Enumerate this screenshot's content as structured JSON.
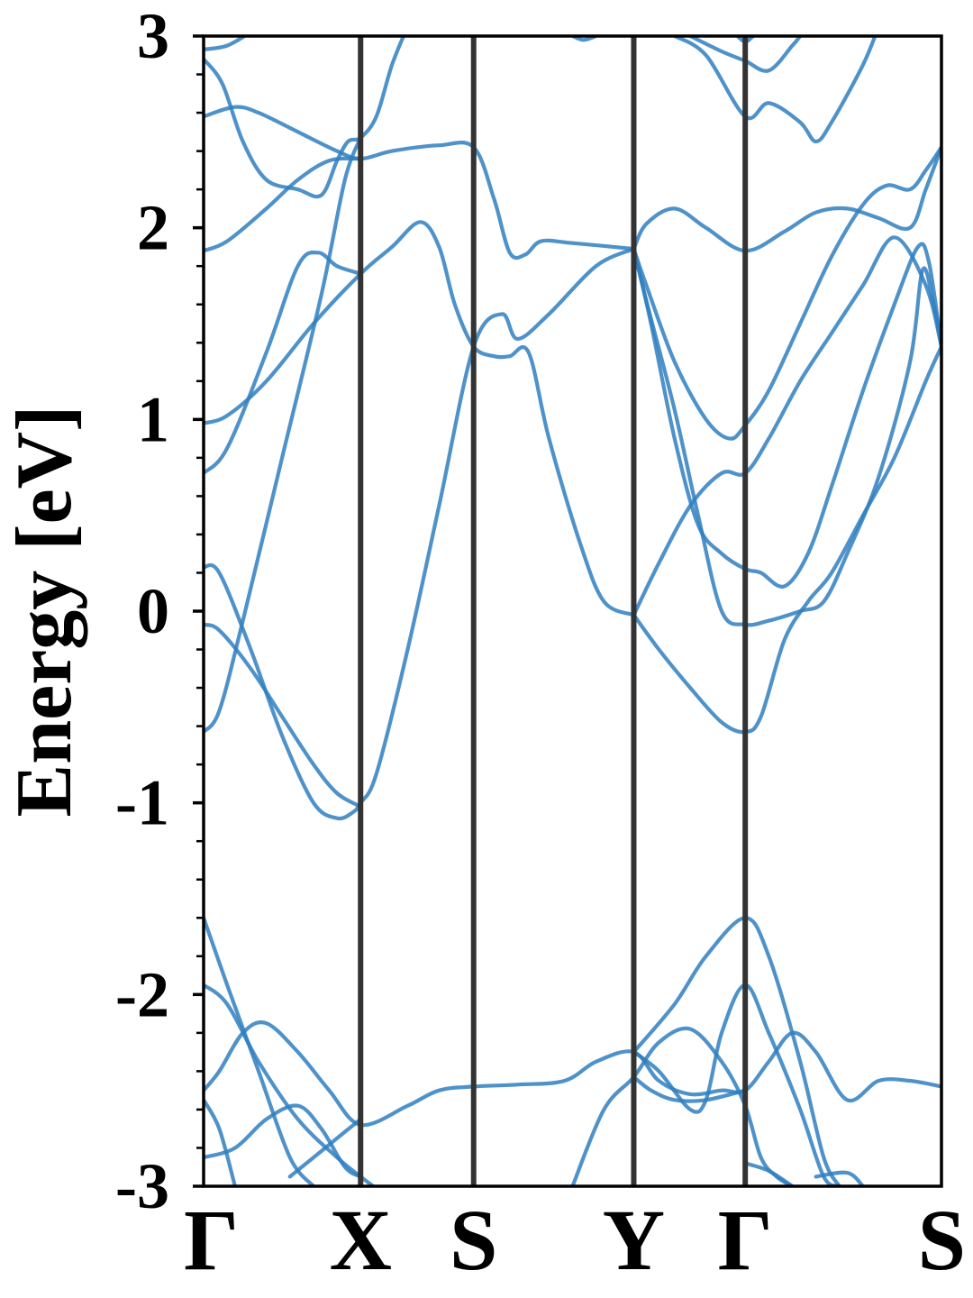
{
  "chart_data": {
    "type": "line",
    "title": "",
    "xlabel": "",
    "ylabel": "Energy [eV]",
    "ylim": [
      -3,
      3
    ],
    "yticks": [
      "3",
      "2",
      "1",
      "0",
      "-1",
      "-2",
      "-3"
    ],
    "y_minor_step": 0.2,
    "kpoints": [
      "Γ",
      "X",
      "S",
      "Y",
      "Γ",
      "S"
    ],
    "kpoint_positions": [
      0,
      1,
      1.72,
      2.74,
      3.45,
      4.7
    ],
    "grid": false,
    "line_color": "#2f7fbf",
    "kline_color": "#333333",
    "series": [
      {
        "values": [
          [
            0,
            2.93
          ],
          [
            0.15,
            2.95
          ],
          [
            0.3,
            3.02
          ]
        ]
      },
      {
        "values": [
          [
            0,
            2.88
          ],
          [
            0.12,
            2.75
          ],
          [
            0.25,
            2.45
          ],
          [
            0.4,
            2.25
          ],
          [
            0.6,
            2.2
          ],
          [
            0.75,
            2.17
          ],
          [
            0.85,
            2.35
          ],
          [
            0.92,
            2.45
          ],
          [
            1,
            2.47
          ],
          [
            1.1,
            2.58
          ],
          [
            1.2,
            2.85
          ],
          [
            1.3,
            3.05
          ]
        ]
      },
      {
        "values": [
          [
            0,
            2.58
          ],
          [
            0.2,
            2.63
          ],
          [
            0.35,
            2.6
          ],
          [
            0.6,
            2.5
          ],
          [
            0.85,
            2.4
          ],
          [
            1,
            2.36
          ],
          [
            1.2,
            2.4
          ],
          [
            1.5,
            2.43
          ],
          [
            1.72,
            2.42
          ],
          [
            1.85,
            2.15
          ],
          [
            1.95,
            1.87
          ],
          [
            2.05,
            1.86
          ],
          [
            2.15,
            1.93
          ],
          [
            2.35,
            1.92
          ],
          [
            2.74,
            1.89
          ]
        ]
      },
      {
        "values": [
          [
            0,
            1.88
          ],
          [
            0.15,
            1.93
          ],
          [
            0.4,
            2.1
          ],
          [
            0.6,
            2.25
          ],
          [
            0.8,
            2.35
          ],
          [
            1,
            2.36
          ]
        ]
      },
      {
        "values": [
          [
            0,
            0.98
          ],
          [
            0.15,
            1.02
          ],
          [
            0.4,
            1.2
          ],
          [
            0.7,
            1.5
          ],
          [
            1,
            1.76
          ],
          [
            1.2,
            1.9
          ],
          [
            1.38,
            2.03
          ],
          [
            1.5,
            1.9
          ],
          [
            1.6,
            1.6
          ],
          [
            1.72,
            1.38
          ],
          [
            1.85,
            1.33
          ],
          [
            1.95,
            1.33
          ],
          [
            2.07,
            1.35
          ],
          [
            2.2,
            0.9
          ],
          [
            2.4,
            0.35
          ],
          [
            2.55,
            0.05
          ],
          [
            2.74,
            -0.02
          ]
        ]
      },
      {
        "values": [
          [
            0,
            0.72
          ],
          [
            0.15,
            0.85
          ],
          [
            0.4,
            1.35
          ],
          [
            0.6,
            1.8
          ],
          [
            0.73,
            1.87
          ],
          [
            0.85,
            1.8
          ],
          [
            1,
            1.76
          ]
        ]
      },
      {
        "values": [
          [
            0,
            0.23
          ],
          [
            0.1,
            0.2
          ],
          [
            0.3,
            -0.2
          ],
          [
            0.5,
            -0.65
          ],
          [
            0.7,
            -1
          ],
          [
            0.85,
            -1.08
          ],
          [
            0.95,
            -1.05
          ],
          [
            1,
            -1.0
          ],
          [
            1.1,
            -0.85
          ],
          [
            1.3,
            -0.2
          ],
          [
            1.5,
            0.55
          ],
          [
            1.72,
            1.38
          ],
          [
            1.9,
            1.55
          ],
          [
            2,
            1.42
          ],
          [
            2.2,
            1.55
          ],
          [
            2.5,
            1.8
          ],
          [
            2.74,
            1.89
          ]
        ]
      },
      {
        "values": [
          [
            0,
            -0.07
          ],
          [
            0.1,
            -0.1
          ],
          [
            0.3,
            -0.3
          ],
          [
            0.5,
            -0.55
          ],
          [
            0.7,
            -0.8
          ],
          [
            0.85,
            -0.95
          ],
          [
            1,
            -1.02
          ]
        ]
      },
      {
        "values": [
          [
            0,
            -0.63
          ],
          [
            0.1,
            -0.52
          ],
          [
            0.25,
            -0.05
          ],
          [
            0.5,
            0.8
          ],
          [
            0.75,
            1.65
          ],
          [
            0.9,
            2.25
          ],
          [
            1,
            2.47
          ]
        ]
      },
      {
        "values": [
          [
            2.74,
            1.89
          ],
          [
            2.82,
            2.02
          ],
          [
            3.0,
            2.1
          ],
          [
            3.2,
            2.0
          ],
          [
            3.45,
            1.88
          ],
          [
            3.7,
            1.98
          ],
          [
            3.9,
            2.08
          ],
          [
            4.1,
            2.1
          ],
          [
            4.3,
            2.05
          ],
          [
            4.5,
            2.0
          ],
          [
            4.6,
            2.2
          ],
          [
            4.7,
            2.42
          ]
        ]
      },
      {
        "values": [
          [
            2.74,
            1.89
          ],
          [
            2.82,
            1.7
          ],
          [
            3.0,
            1.3
          ],
          [
            3.2,
            1.0
          ],
          [
            3.35,
            0.9
          ],
          [
            3.45,
            0.97
          ],
          [
            3.6,
            1.15
          ],
          [
            3.8,
            1.5
          ],
          [
            4,
            1.85
          ],
          [
            4.2,
            2.12
          ],
          [
            4.35,
            2.22
          ],
          [
            4.5,
            2.2
          ],
          [
            4.6,
            2.3
          ],
          [
            4.7,
            2.42
          ]
        ]
      },
      {
        "values": [
          [
            2.74,
            1.89
          ],
          [
            2.85,
            1.5
          ],
          [
            3.0,
            0.9
          ],
          [
            3.15,
            0.45
          ],
          [
            3.3,
            0.3
          ],
          [
            3.45,
            0.22
          ],
          [
            3.55,
            0.2
          ],
          [
            3.7,
            0.13
          ],
          [
            3.85,
            0.3
          ],
          [
            4,
            0.65
          ],
          [
            4.2,
            1.15
          ],
          [
            4.4,
            1.6
          ],
          [
            4.55,
            1.9
          ],
          [
            4.62,
            1.82
          ],
          [
            4.7,
            1.38
          ]
        ]
      },
      {
        "values": [
          [
            2.74,
            1.89
          ],
          [
            2.82,
            1.62
          ],
          [
            3.0,
            1.05
          ],
          [
            3.15,
            0.5
          ],
          [
            3.3,
            0.0
          ],
          [
            3.45,
            -0.07
          ],
          [
            3.6,
            -0.05
          ],
          [
            3.8,
            0.0
          ],
          [
            3.95,
            0.05
          ],
          [
            4.1,
            0.3
          ],
          [
            4.3,
            0.7
          ],
          [
            4.5,
            1.3
          ],
          [
            4.58,
            1.78
          ],
          [
            4.65,
            1.6
          ],
          [
            4.7,
            1.38
          ]
        ]
      },
      {
        "values": [
          [
            2.74,
            -0.02
          ],
          [
            2.9,
            0.25
          ],
          [
            3.1,
            0.55
          ],
          [
            3.3,
            0.72
          ],
          [
            3.45,
            0.72
          ],
          [
            3.6,
            0.9
          ],
          [
            3.8,
            1.2
          ],
          [
            4,
            1.45
          ],
          [
            4.2,
            1.7
          ],
          [
            4.4,
            1.95
          ],
          [
            4.6,
            1.7
          ],
          [
            4.7,
            1.38
          ]
        ]
      },
      {
        "values": [
          [
            2.74,
            -0.02
          ],
          [
            2.9,
            -0.2
          ],
          [
            3.1,
            -0.4
          ],
          [
            3.3,
            -0.58
          ],
          [
            3.45,
            -0.63
          ],
          [
            3.55,
            -0.55
          ],
          [
            3.7,
            -0.15
          ],
          [
            3.85,
            0.05
          ],
          [
            4,
            0.2
          ],
          [
            4.2,
            0.5
          ],
          [
            4.4,
            0.8
          ],
          [
            4.6,
            1.2
          ],
          [
            4.7,
            1.38
          ]
        ]
      },
      {
        "values": [
          [
            3.0,
            3.0
          ],
          [
            3.2,
            2.9
          ],
          [
            3.45,
            2.58
          ],
          [
            3.6,
            2.65
          ],
          [
            3.8,
            2.55
          ],
          [
            3.9,
            2.45
          ],
          [
            4.0,
            2.55
          ],
          [
            4.2,
            2.85
          ],
          [
            4.3,
            3.05
          ]
        ]
      },
      {
        "values": [
          [
            3.1,
            3.0
          ],
          [
            3.3,
            2.92
          ],
          [
            3.45,
            2.87
          ],
          [
            3.6,
            2.82
          ],
          [
            3.75,
            2.95
          ],
          [
            3.8,
            3.0
          ]
        ]
      },
      {
        "values": [
          [
            3.4,
            3.0
          ],
          [
            3.45,
            2.97
          ],
          [
            3.5,
            3.0
          ]
        ]
      },
      {
        "values": [
          [
            2.35,
            3.0
          ],
          [
            2.42,
            2.98
          ],
          [
            2.5,
            3.0
          ]
        ]
      },
      {
        "values": [
          [
            0,
            -1.6
          ],
          [
            0.15,
            -1.95
          ],
          [
            0.35,
            -2.4
          ],
          [
            0.55,
            -2.85
          ],
          [
            0.7,
            -3.0
          ]
        ]
      },
      {
        "values": [
          [
            0,
            -1.95
          ],
          [
            0.15,
            -2.05
          ],
          [
            0.35,
            -2.35
          ],
          [
            0.6,
            -2.65
          ],
          [
            0.85,
            -2.85
          ],
          [
            1,
            -2.95
          ],
          [
            1.08,
            -3.0
          ]
        ]
      },
      {
        "values": [
          [
            0,
            -2.5
          ],
          [
            0.1,
            -2.4
          ],
          [
            0.25,
            -2.2
          ],
          [
            0.4,
            -2.15
          ],
          [
            0.6,
            -2.3
          ],
          [
            0.8,
            -2.5
          ],
          [
            1,
            -2.68
          ],
          [
            1.3,
            -2.58
          ],
          [
            1.5,
            -2.5
          ],
          [
            1.72,
            -2.48
          ],
          [
            2.0,
            -2.47
          ],
          [
            2.3,
            -2.45
          ],
          [
            2.5,
            -2.35
          ],
          [
            2.74,
            -2.3
          ],
          [
            2.9,
            -2.45
          ],
          [
            3.1,
            -2.52
          ],
          [
            3.3,
            -2.5
          ],
          [
            3.45,
            -2.5
          ],
          [
            3.6,
            -2.35
          ],
          [
            3.75,
            -2.2
          ],
          [
            3.9,
            -2.3
          ],
          [
            4.1,
            -2.55
          ],
          [
            4.3,
            -2.45
          ],
          [
            4.5,
            -2.45
          ],
          [
            4.7,
            -2.48
          ]
        ]
      },
      {
        "values": [
          [
            0,
            -2.55
          ],
          [
            0.1,
            -2.7
          ],
          [
            0.2,
            -3.0
          ]
        ]
      },
      {
        "values": [
          [
            0,
            -2.85
          ],
          [
            0.2,
            -2.8
          ],
          [
            0.4,
            -2.65
          ],
          [
            0.6,
            -2.58
          ],
          [
            0.75,
            -2.7
          ],
          [
            0.9,
            -2.9
          ],
          [
            1,
            -2.95
          ]
        ]
      },
      {
        "values": [
          [
            0.55,
            -2.95
          ],
          [
            0.7,
            -2.85
          ],
          [
            0.85,
            -2.75
          ],
          [
            1,
            -2.65
          ]
        ]
      },
      {
        "values": [
          [
            2.35,
            -3.0
          ],
          [
            2.55,
            -2.6
          ],
          [
            2.74,
            -2.43
          ],
          [
            2.9,
            -2.25
          ],
          [
            3.1,
            -2.18
          ],
          [
            3.3,
            -2.35
          ],
          [
            3.45,
            -2.58
          ],
          [
            3.55,
            -2.85
          ],
          [
            3.65,
            -2.95
          ],
          [
            3.75,
            -3.0
          ]
        ]
      },
      {
        "values": [
          [
            2.74,
            -2.43
          ],
          [
            2.85,
            -2.5
          ],
          [
            3.0,
            -2.55
          ],
          [
            3.2,
            -2.55
          ],
          [
            3.45,
            -2.5
          ]
        ]
      },
      {
        "values": [
          [
            2.74,
            -2.3
          ],
          [
            2.9,
            -2.4
          ],
          [
            3.1,
            -2.6
          ],
          [
            3.2,
            -2.55
          ],
          [
            3.3,
            -2.2
          ],
          [
            3.45,
            -1.95
          ],
          [
            3.6,
            -2.2
          ],
          [
            3.8,
            -2.6
          ],
          [
            3.95,
            -2.95
          ],
          [
            4.05,
            -3.0
          ]
        ]
      },
      {
        "values": [
          [
            2.74,
            -2.3
          ],
          [
            3.0,
            -2.05
          ],
          [
            3.2,
            -1.8
          ],
          [
            3.45,
            -1.6
          ],
          [
            3.6,
            -1.8
          ],
          [
            3.8,
            -2.35
          ],
          [
            3.95,
            -2.85
          ],
          [
            4.05,
            -3.0
          ]
        ]
      },
      {
        "values": [
          [
            3.45,
            -2.88
          ],
          [
            3.6,
            -2.92
          ],
          [
            3.75,
            -3.0
          ]
        ]
      },
      {
        "values": [
          [
            3.9,
            -2.95
          ],
          [
            4.1,
            -2.93
          ],
          [
            4.2,
            -3.0
          ]
        ]
      }
    ]
  }
}
